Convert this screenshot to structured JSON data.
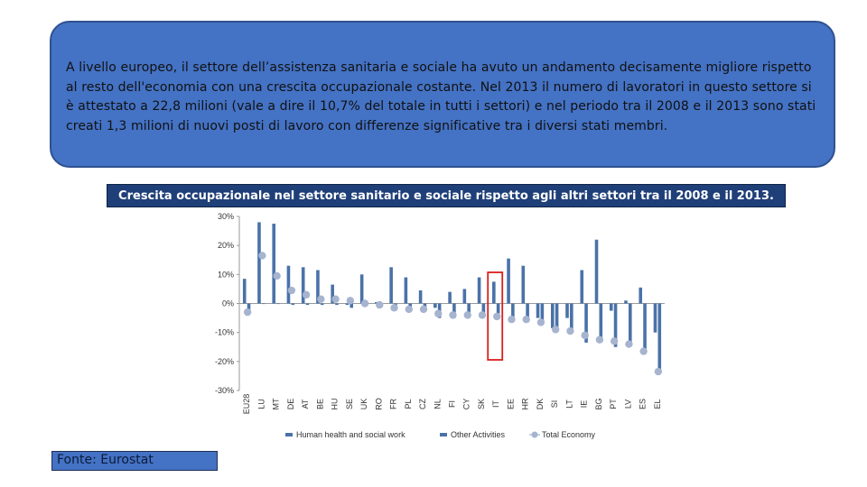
{
  "intro": {
    "text": "A livello europeo, il settore dell’assistenza sanitaria e sociale ha avuto un andamento decisamente migliore rispetto al resto dell'economia con una crescita occupazionale costante. Nel 2013 il numero di lavoratori in questo settore si è attestato a 22,8 milioni (vale a dire il 10,7% del totale in tutti i settori) e nel periodo tra il 2008 e il 2013 sono stati creati 1,3 milioni di nuovi posti di lavoro con differenze significative tra i diversi stati membri."
  },
  "chart_title": "Crescita occupazionale nel settore sanitario e sociale rispetto agli altri settori tra il 2008 e il 2013.",
  "source": "Fonte: Eurostat",
  "chart_data": {
    "type": "bar",
    "categories": [
      "EU28",
      "LU",
      "MT",
      "DE",
      "AT",
      "BE",
      "HU",
      "SE",
      "UK",
      "RO",
      "FR",
      "PL",
      "CZ",
      "NL",
      "FI",
      "CY",
      "SK",
      "IT",
      "EE",
      "HR",
      "DK",
      "SI",
      "LT",
      "IE",
      "BG",
      "PT",
      "LV",
      "ES",
      "EL"
    ],
    "series": [
      {
        "name": "Human health and social work",
        "kind": "bar",
        "color": "#4a72a8",
        "values": [
          8.5,
          28,
          27.5,
          13,
          12.5,
          11.5,
          6.5,
          -0.5,
          10,
          0.5,
          12.5,
          9,
          4.5,
          -1.5,
          4,
          5,
          9,
          7.5,
          15.5,
          13,
          -5,
          -8.5,
          -5,
          11.5,
          22,
          -2.5,
          1,
          5.5,
          -10
        ]
      },
      {
        "name": "Other Activities",
        "kind": "bar",
        "color": "#4a72a8",
        "values": [
          -3,
          0,
          0,
          -0.5,
          -0.5,
          -0.5,
          -0.5,
          -1.5,
          -0.5,
          -0.5,
          -1.5,
          -2,
          -1.5,
          -5,
          -5,
          -3.5,
          -3.5,
          -3.5,
          -5.5,
          -6.5,
          -7,
          -9,
          -9.5,
          -13.5,
          -13,
          -15,
          -14,
          -16.5,
          -23
        ]
      },
      {
        "name": "Total Economy",
        "kind": "point",
        "color": "#a6b4cf",
        "values": [
          -3,
          16.5,
          9.5,
          4.5,
          3,
          1.5,
          1.5,
          1,
          0,
          -0.5,
          -1.5,
          -2,
          -2,
          -3.5,
          -4,
          -4,
          -4,
          -4.5,
          -5.5,
          -5.5,
          -6.5,
          -9,
          -9.5,
          -11,
          -12.5,
          -13,
          -14,
          -16.5,
          -23.5
        ]
      }
    ],
    "ylim": [
      -30,
      30
    ],
    "yticks": [
      30,
      20,
      10,
      0,
      -10,
      -20,
      -30
    ],
    "ytick_labels": [
      "30%",
      "20%",
      "10%",
      "0%",
      "-10%",
      "-20%",
      "-30%"
    ],
    "highlight_category": "IT",
    "highlight_color": "#d9201e",
    "legend_position": "bottom",
    "grid": false
  }
}
